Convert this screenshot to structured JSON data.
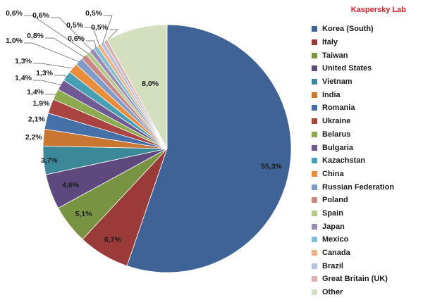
{
  "brand": "Kaspersky Lab",
  "chart_data": {
    "type": "pie",
    "title": "",
    "categories": [
      "Korea (South)",
      "Italy",
      "Taiwan",
      "United States",
      "Vietnam",
      "India",
      "Romania",
      "Ukraine",
      "Belarus",
      "Bulgaria",
      "Kazachstan",
      "China",
      "Russian Federation",
      "Poland",
      "Spain",
      "Japan",
      "Mexico",
      "Canada",
      "Brazil",
      "Great Britain (UK)",
      "Other"
    ],
    "values": [
      55.3,
      6.7,
      5.1,
      4.6,
      3.7,
      2.2,
      2.1,
      1.9,
      1.4,
      1.4,
      1.3,
      1.3,
      1.0,
      0.8,
      0.6,
      0.6,
      0.6,
      0.5,
      0.5,
      0.5,
      8.0
    ],
    "labels": [
      "55,3%",
      "6,7%",
      "5,1%",
      "4,6%",
      "3,7%",
      "2,2%",
      "2,1%",
      "1,9%",
      "1,4%",
      "1,4%",
      "1,3%",
      "1,3%",
      "1,0%",
      "0,8%",
      "0,6%",
      "0,6%",
      "0,6%",
      "0,5%",
      "0,5%",
      "0,5%",
      "8,0%"
    ],
    "colors": [
      "#3f6396",
      "#9a3b39",
      "#789443",
      "#5d497d",
      "#3b8899",
      "#c97633",
      "#4670a8",
      "#a94441",
      "#8dab4e",
      "#705a93",
      "#46a0b5",
      "#e98d3b",
      "#7e9bc9",
      "#c98684",
      "#b2c98a",
      "#9b8ab6",
      "#83bfd0",
      "#f2b07d",
      "#b4c2de",
      "#dbb2b1",
      "#d3dfbf"
    ],
    "legend_position": "right",
    "start_angle_deg": 0,
    "direction": "clockwise"
  }
}
